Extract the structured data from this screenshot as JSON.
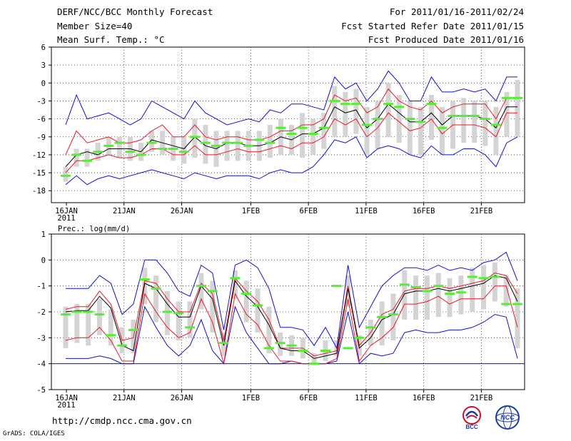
{
  "header": {
    "title": "DERF/NCC/BCC Monthly Forecast",
    "member_size": "Member Size=40",
    "variable": "Mean Surf. Temp.: °C",
    "period": "For 2011/01/16-2011/02/24",
    "started_refer": "Fcst Started Refer Date 2011/01/15",
    "produced": "Fcst Produced Date 2011/01/16"
  },
  "footer": {
    "url": "http://cmdp.ncc.cma.gov.cn",
    "grads": "GrADS: COLA/IGES",
    "logo_bcc": "BCC",
    "logo_ncc": "NCC"
  },
  "colors": {
    "box": "#d4d4d4",
    "median": "#55ee33",
    "mean": "#000000",
    "inner": "#e8182a",
    "outer": "#1010cc",
    "grid": "#333333"
  },
  "chart_data": [
    {
      "type": "line",
      "title": "Mean Surf. Temp.: °C",
      "ylabel": "°C",
      "ylim": [
        -20,
        6
      ],
      "yticks": [
        6,
        3,
        0,
        -3,
        -6,
        -9,
        -12,
        -15,
        -18
      ],
      "x_day_index_range": [
        0,
        39
      ],
      "x_ticks": [
        {
          "day": 0,
          "label": "16JAN",
          "sub": "2011"
        },
        {
          "day": 5,
          "label": "21JAN"
        },
        {
          "day": 10,
          "label": "26JAN"
        },
        {
          "day": 16,
          "label": "1FEB"
        },
        {
          "day": 21,
          "label": "6FEB"
        },
        {
          "day": 26,
          "label": "11FEB"
        },
        {
          "day": 31,
          "label": "16FEB"
        },
        {
          "day": 36,
          "label": "21FEB"
        }
      ],
      "grid": true,
      "series": [
        {
          "name": "ensemble max",
          "values": [
            -7,
            -2,
            -6,
            -5.5,
            -5,
            -6,
            -7,
            -6,
            -3,
            -4,
            -5,
            -6,
            -3,
            -5,
            -6,
            -7,
            -6.5,
            -6,
            -6.5,
            -4.5,
            -5,
            -3.5,
            -3.5,
            -4,
            -4.5,
            1,
            -1,
            0,
            -3,
            -1,
            2,
            0,
            -3,
            -3,
            1,
            -1.5,
            -1.5,
            -1,
            -1.5,
            -1,
            -3,
            1,
            1
          ]
        },
        {
          "name": "upper member",
          "values": [
            -12,
            -8,
            -10,
            -9.5,
            -9,
            -10,
            -10,
            -9.5,
            -8,
            -7,
            -9,
            -9,
            -7,
            -9,
            -9.5,
            -9,
            -9,
            -9.5,
            -9.5,
            -9,
            -8,
            -8,
            -7,
            -7,
            -6,
            -2,
            -3,
            -2.5,
            -5,
            -4,
            -1,
            -3,
            -4,
            -4.5,
            -3,
            -5,
            -4,
            -3.5,
            -3.5,
            -3.5,
            -6,
            -2.5,
            -2.5
          ]
        },
        {
          "name": "ensemble mean",
          "values": [
            -14,
            -12,
            -11.5,
            -12,
            -11,
            -11,
            -11,
            -11.5,
            -9.5,
            -10,
            -10.5,
            -11,
            -9,
            -10.5,
            -11,
            -10,
            -10,
            -10.5,
            -10.5,
            -10,
            -9,
            -9.5,
            -8.5,
            -8.5,
            -7.5,
            -4,
            -5,
            -4.5,
            -7.5,
            -6,
            -3.5,
            -5,
            -6.5,
            -6.5,
            -5,
            -7,
            -5.5,
            -5.5,
            -5.5,
            -6,
            -7.5,
            -4,
            -4
          ]
        },
        {
          "name": "lower member",
          "values": [
            -15,
            -13,
            -13,
            -12.5,
            -12,
            -12.5,
            -12.5,
            -12,
            -11,
            -11,
            -12,
            -12,
            -10.5,
            -12,
            -12,
            -11.5,
            -11,
            -11.5,
            -11.5,
            -11,
            -10.5,
            -11,
            -10,
            -10,
            -9,
            -6,
            -7,
            -6,
            -9,
            -7.5,
            -5,
            -6.5,
            -8,
            -7.5,
            -6,
            -8.5,
            -7,
            -7,
            -7,
            -7.5,
            -9,
            -5,
            -5
          ]
        },
        {
          "name": "ensemble min",
          "values": [
            -17,
            -15.5,
            -17,
            -16,
            -15.5,
            -16,
            -15.5,
            -15,
            -14.5,
            -15,
            -15.5,
            -16,
            -15,
            -15.5,
            -16,
            -15.5,
            -15.5,
            -15.5,
            -16,
            -15,
            -14.5,
            -15,
            -15,
            -14,
            -12,
            -9.5,
            -10,
            -9,
            -12.5,
            -11,
            -10.5,
            -11,
            -12,
            -12.5,
            -10.5,
            -12,
            -12,
            -11,
            -11,
            -12,
            -14,
            -10,
            -9
          ]
        },
        {
          "name": "ensemble median",
          "values": [
            -15.5,
            -12,
            -13,
            -11.5,
            -10.5,
            -10,
            -11.5,
            -12,
            -10,
            -11,
            -11,
            -11.5,
            -9,
            -10,
            -10.5,
            -10,
            -10,
            -10.5,
            -9.5,
            -10,
            -7.5,
            -8.5,
            -7.5,
            -8.5,
            -7.5,
            -3,
            -3.5,
            -3.5,
            -7,
            -6,
            -3.5,
            -4,
            -6,
            -6.5,
            -3.5,
            -7.5,
            -5.5,
            -5.5,
            -5.5,
            -6,
            -7,
            -2.5,
            -2.5
          ]
        },
        {
          "name": "box upper",
          "values": [
            -14,
            -11,
            -11,
            -10,
            -9,
            -9,
            -9,
            -10,
            -8,
            -8,
            -9,
            -9,
            -6,
            -7,
            -8,
            -8,
            -8,
            -8,
            -8,
            -7,
            -6,
            -7,
            -5,
            -6,
            -5,
            -0.5,
            -1.5,
            -1,
            -4,
            -3,
            0,
            -2,
            -3,
            -4,
            -2,
            -4,
            -3,
            -2.5,
            -3,
            -3,
            -4,
            -1.5,
            0.5
          ]
        },
        {
          "name": "box lower",
          "values": [
            -16.5,
            -14,
            -14,
            -13,
            -12,
            -12.5,
            -13,
            -13,
            -11.5,
            -12,
            -13,
            -13.5,
            -12.5,
            -13.5,
            -14,
            -13,
            -13,
            -13,
            -13,
            -12.5,
            -12,
            -12,
            -12.5,
            -12,
            -11,
            -9,
            -9,
            -8.5,
            -12,
            -11,
            -9,
            -10,
            -12,
            -12,
            -9.5,
            -12,
            -11,
            -10,
            -10,
            -10.5,
            -12,
            -9,
            -9
          ]
        }
      ]
    },
    {
      "type": "line",
      "title": "Prec.: log(mm/d)",
      "ylabel": "log(mm/d)",
      "ylim": [
        -5,
        1
      ],
      "yticks": [
        1,
        0,
        -1,
        -2,
        -3,
        -4,
        -5
      ],
      "x_day_index_range": [
        0,
        39
      ],
      "x_ticks": [
        {
          "day": 0,
          "label": "16JAN",
          "sub": "2011"
        },
        {
          "day": 5,
          "label": "21JAN"
        },
        {
          "day": 10,
          "label": "26JAN"
        },
        {
          "day": 16,
          "label": "1FEB"
        },
        {
          "day": 21,
          "label": "6FEB"
        },
        {
          "day": 26,
          "label": "11FEB"
        },
        {
          "day": 31,
          "label": "16FEB"
        },
        {
          "day": 36,
          "label": "21FEB"
        }
      ],
      "grid": true,
      "series": [
        {
          "name": "ensemble max",
          "values": [
            -1.1,
            -1.1,
            -1.1,
            -0.6,
            -0.9,
            -2.1,
            -1.7,
            0,
            0,
            -0.5,
            -1.2,
            -1.4,
            -0.2,
            -0.5,
            -2.7,
            -0.2,
            0,
            -0.3,
            -1.1,
            -2.6,
            -2.6,
            -2.7,
            -3.3,
            -2.6,
            -3.4,
            -0.2,
            -2.6,
            -1.8,
            -1,
            -0.6,
            -0.3,
            -0.3,
            -0.4,
            -0.2,
            -0.4,
            -0.3,
            -0.4,
            -0.1,
            0,
            0.3,
            -0.8
          ]
        },
        {
          "name": "upper member",
          "values": [
            -1.9,
            -1.8,
            -1.8,
            -1.2,
            -1.7,
            -3.1,
            -3,
            -0.8,
            -0.9,
            -1.5,
            -2,
            -2,
            -0.9,
            -1.3,
            -3.1,
            -0.7,
            -1.2,
            -1.6,
            -2.3,
            -3.4,
            -3.4,
            -3.4,
            -3.7,
            -3.6,
            -3.5,
            -1,
            -3.3,
            -2.8,
            -2.1,
            -1.9,
            -1.2,
            -1.1,
            -1.1,
            -1,
            -1.1,
            -1,
            -0.9,
            -0.8,
            -0.5,
            -0.6,
            -1.3
          ]
        },
        {
          "name": "ensemble mean",
          "values": [
            -2,
            -1.95,
            -1.95,
            -1.4,
            -1.85,
            -3.3,
            -3.5,
            -0.9,
            -1.1,
            -1.7,
            -2.2,
            -2.2,
            -1,
            -1.5,
            -3.3,
            -0.8,
            -1.4,
            -1.8,
            -2.5,
            -3.4,
            -3.5,
            -3.5,
            -3.8,
            -3.7,
            -3.6,
            -1.1,
            -3.4,
            -3,
            -2.3,
            -2.1,
            -1.3,
            -1.2,
            -1.2,
            -1.1,
            -1.2,
            -1.1,
            -1,
            -0.9,
            -0.6,
            -0.7,
            -1.6
          ]
        },
        {
          "name": "lower member",
          "values": [
            -3.1,
            -3,
            -3,
            -2.6,
            -3.1,
            -3.9,
            -3.9,
            -1.3,
            -2,
            -2.6,
            -3,
            -2.8,
            -1.5,
            -2.4,
            -4,
            -1.3,
            -2.1,
            -2.5,
            -3.3,
            -3.9,
            -3.9,
            -4,
            -4,
            -4,
            -3.8,
            -1.5,
            -3.9,
            -3.3,
            -3,
            -2.6,
            -1.7,
            -1.7,
            -1.6,
            -1.4,
            -1.7,
            -1.5,
            -1.5,
            -1.5,
            -1,
            -1,
            -2.6
          ]
        },
        {
          "name": "ensemble min",
          "values": [
            -3.8,
            -3.8,
            -3.8,
            -3.7,
            -3.8,
            -4,
            -4,
            -1.8,
            -2.6,
            -3.3,
            -3.7,
            -3.3,
            -2.3,
            -3.5,
            -4,
            -1.8,
            -2.8,
            -3.4,
            -4,
            -4,
            -3.9,
            -4,
            -4,
            -4,
            -3.9,
            -2,
            -4,
            -3.6,
            -3.7,
            -3.6,
            -2.8,
            -2.7,
            -2.8,
            -2.8,
            -2.7,
            -2.7,
            -2.6,
            -2.4,
            -2.1,
            -2.2,
            -3.8
          ]
        },
        {
          "name": "ensemble median",
          "values": [
            -2.1,
            -2,
            -2,
            -2.1,
            -2.9,
            -3.3,
            -2.7,
            -0.75,
            -1.1,
            -2,
            -2.05,
            -2.6,
            -1,
            -1.2,
            -3.2,
            -0.7,
            -1.3,
            -1.75,
            -3.4,
            -3.2,
            -3.3,
            -3.5,
            -4,
            -3.5,
            -1,
            -3.4,
            -3,
            -2.6,
            -2.2,
            -2.1,
            -0.95,
            -1.05,
            -1.2,
            -1,
            -1.3,
            -1.25,
            -0.65,
            -0.7,
            -0.65,
            -1.7,
            -1.7
          ]
        },
        {
          "name": "box upper",
          "values": [
            -1.8,
            -1.7,
            -1.7,
            -1.5,
            -1.9,
            -2.6,
            -2.3,
            -0.3,
            -0.6,
            -1.2,
            -1.6,
            -1.6,
            -0.5,
            -0.8,
            -2.8,
            -0.4,
            -0.8,
            -1.1,
            -1.8,
            -2.8,
            -2.9,
            -3,
            -3.6,
            -3.1,
            -3.1,
            -0.6,
            -2.9,
            -2.3,
            -1.6,
            -1.3,
            -0.4,
            -0.6,
            -0.6,
            -0.5,
            -0.7,
            -0.6,
            -0.3,
            -0.2,
            -0.1,
            -0.6,
            -1.1
          ]
        },
        {
          "name": "box lower",
          "values": [
            -3.4,
            -3.2,
            -3.3,
            -2.9,
            -3.3,
            -3.6,
            -3.6,
            -1.7,
            -2.4,
            -2.9,
            -3.1,
            -3,
            -1.9,
            -2.8,
            -3.7,
            -1.5,
            -2.4,
            -2.8,
            -3.6,
            -3.7,
            -3.7,
            -3.8,
            -4,
            -3.9,
            -3.7,
            -1.8,
            -3.7,
            -3.3,
            -3.3,
            -3.1,
            -2.3,
            -2.3,
            -2.3,
            -2.2,
            -2.2,
            -2.1,
            -2,
            -1.9,
            -1.6,
            -1.8,
            -3.4
          ]
        }
      ],
      "floor_line": -4
    }
  ]
}
